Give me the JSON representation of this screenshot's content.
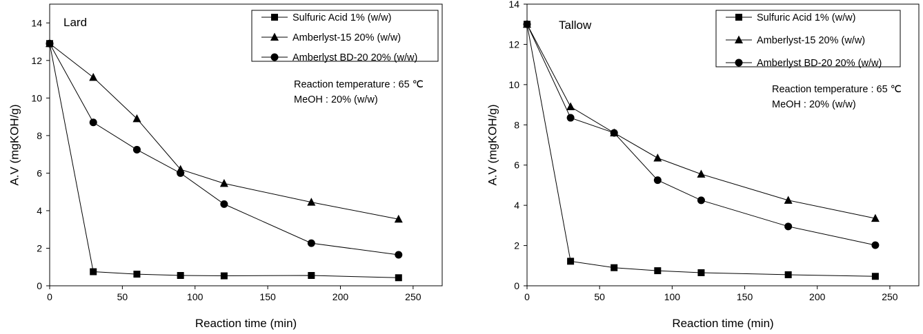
{
  "chart_data": [
    {
      "type": "line",
      "title": "Lard",
      "xlabel": "Reaction time (min)",
      "ylabel": "A.V (mgKOH/g)",
      "xlim": [
        0,
        270
      ],
      "ylim": [
        0,
        15
      ],
      "xticks": [
        0,
        50,
        100,
        150,
        200,
        250
      ],
      "yticks": [
        0,
        2,
        4,
        6,
        8,
        10,
        12,
        14
      ],
      "legend_position": "top-right",
      "annotations": [
        "Reaction temperature : 65 ℃",
        "MeOH : 20% (w/w)"
      ],
      "series": [
        {
          "name": "Sulfuric Acid  1% (w/w)",
          "marker": "square",
          "x": [
            0,
            30,
            60,
            90,
            120,
            180,
            240
          ],
          "y": [
            12.9,
            0.75,
            0.62,
            0.55,
            0.53,
            0.55,
            0.43
          ]
        },
        {
          "name": "Amberlyst-15 20% (w/w)",
          "marker": "triangle",
          "x": [
            0,
            30,
            60,
            90,
            120,
            180,
            240
          ],
          "y": [
            12.9,
            11.1,
            8.9,
            6.2,
            5.45,
            4.45,
            3.55
          ]
        },
        {
          "name": "Amberlyst BD-20 20% (w/w)",
          "marker": "circle",
          "x": [
            0,
            30,
            60,
            90,
            120,
            180,
            240
          ],
          "y": [
            12.9,
            8.7,
            7.25,
            6.0,
            4.35,
            2.27,
            1.65
          ]
        }
      ]
    },
    {
      "type": "line",
      "title": "Tallow",
      "xlabel": "Reaction time (min)",
      "ylabel": "A.V (mgKOH/g)",
      "xlim": [
        0,
        270
      ],
      "ylim": [
        0,
        14
      ],
      "xticks": [
        0,
        50,
        100,
        150,
        200,
        250
      ],
      "yticks": [
        0,
        2,
        4,
        6,
        8,
        10,
        12,
        14
      ],
      "legend_position": "top-right",
      "annotations": [
        "Reaction temperature : 65 ℃",
        "MeOH : 20% (w/w)"
      ],
      "series": [
        {
          "name": "Sulfuric Acid  1% (w/w)",
          "marker": "square",
          "x": [
            0,
            30,
            60,
            90,
            120,
            180,
            240
          ],
          "y": [
            13.0,
            1.22,
            0.9,
            0.75,
            0.65,
            0.55,
            0.47
          ]
        },
        {
          "name": "Amberlyst-15 20% (w/w)",
          "marker": "triangle",
          "x": [
            0,
            30,
            60,
            90,
            120,
            180,
            240
          ],
          "y": [
            13.0,
            8.9,
            7.6,
            6.35,
            5.55,
            4.25,
            3.35
          ]
        },
        {
          "name": "Amberlyst BD-20 20% (w/w)",
          "marker": "circle",
          "x": [
            0,
            30,
            60,
            90,
            120,
            180,
            240
          ],
          "y": [
            13.0,
            8.35,
            7.6,
            5.25,
            4.25,
            2.95,
            2.02
          ]
        }
      ]
    }
  ]
}
